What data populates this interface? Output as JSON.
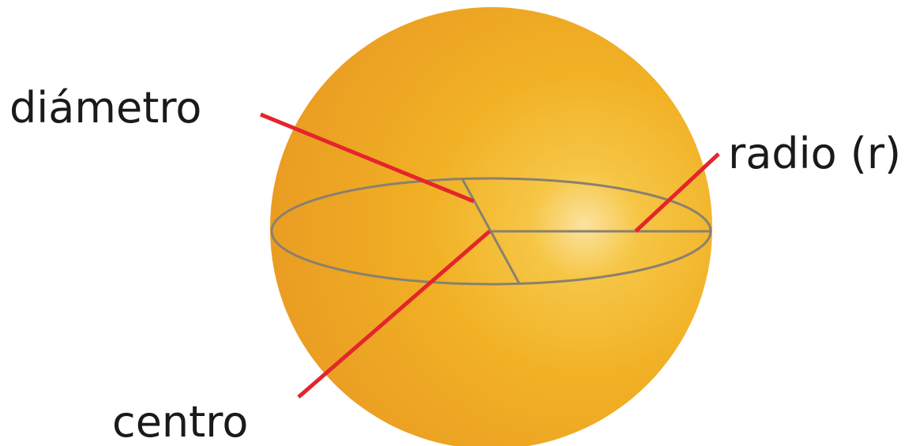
{
  "labels": {
    "diameter": "diámetro",
    "radius": "radio (r)",
    "center": "centro"
  }
}
